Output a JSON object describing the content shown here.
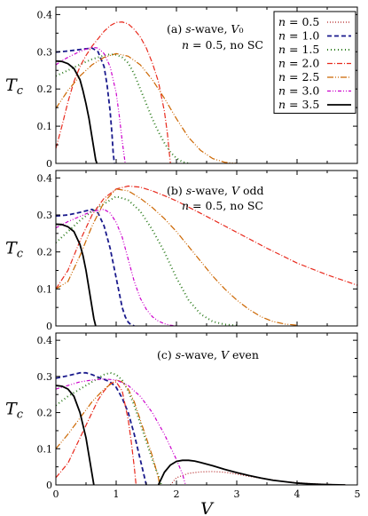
{
  "chart_data": {
    "type": "line",
    "xlabel": "V",
    "xlim": [
      0,
      5
    ],
    "xticks": [
      "0",
      "1",
      "2",
      "3",
      "4",
      "5"
    ],
    "ylim": [
      0,
      0.42
    ],
    "yticks": [
      "0",
      "0.1",
      "0.2",
      "0.3",
      "0.4"
    ],
    "legend": {
      "placement": "top-right",
      "entries": [
        "n = 0.5",
        "n = 1.0",
        "n = 1.5",
        "n = 2.0",
        "n = 2.5",
        "n = 3.0",
        "n = 3.5"
      ]
    },
    "series_styles": [
      {
        "color": "#b22222",
        "dash": "1,2",
        "width": 1.2
      },
      {
        "color": "#1a1a8c",
        "dash": "5,3",
        "width": 1.8
      },
      {
        "color": "#2e7d1f",
        "dash": "1,3",
        "width": 2.0
      },
      {
        "color": "#e8291c",
        "dash": "6,2,1,2",
        "width": 1.2
      },
      {
        "color": "#cc6600",
        "dash": "7,2,1,2,1,2",
        "width": 1.2
      },
      {
        "color": "#cc00cc",
        "dash": "4,2,1,2,1,2",
        "width": 1.2
      },
      {
        "color": "#000000",
        "dash": "",
        "width": 1.8
      }
    ],
    "panels": [
      {
        "annotation_lines": [
          "(a) s-wave, V₀",
          "n = 0.5, no SC"
        ],
        "ylabel": "Tc",
        "series": [
          {
            "name": "n = 0.5",
            "x": [],
            "y": []
          },
          {
            "name": "n = 1.0",
            "x": [
              0,
              0.2,
              0.4,
              0.6,
              0.7,
              0.8,
              0.85,
              0.9,
              0.93,
              0.95,
              0.97
            ],
            "y": [
              0.299,
              0.302,
              0.306,
              0.31,
              0.3,
              0.26,
              0.21,
              0.14,
              0.08,
              0.03,
              0
            ]
          },
          {
            "name": "n = 1.5",
            "x": [
              0,
              0.2,
              0.4,
              0.6,
              0.8,
              0.9,
              1.0,
              1.1,
              1.2,
              1.3,
              1.4,
              1.5,
              1.6,
              1.7,
              1.8,
              1.9,
              2.0,
              2.1,
              2.2
            ],
            "y": [
              0.235,
              0.25,
              0.266,
              0.28,
              0.29,
              0.293,
              0.292,
              0.285,
              0.27,
              0.24,
              0.2,
              0.16,
              0.12,
              0.085,
              0.055,
              0.03,
              0.014,
              0.004,
              0
            ]
          },
          {
            "name": "n = 2.0",
            "x": [
              0,
              0.1,
              0.2,
              0.3,
              0.4,
              0.5,
              0.6,
              0.7,
              0.8,
              0.9,
              1.0,
              1.1,
              1.2,
              1.3,
              1.4,
              1.5,
              1.6,
              1.7,
              1.8,
              1.85,
              1.88,
              1.9
            ],
            "y": [
              0.04,
              0.1,
              0.165,
              0.22,
              0.26,
              0.29,
              0.315,
              0.335,
              0.355,
              0.37,
              0.379,
              0.38,
              0.375,
              0.36,
              0.34,
              0.31,
              0.27,
              0.22,
              0.14,
              0.08,
              0.03,
              0
            ]
          },
          {
            "name": "n = 2.5",
            "x": [
              0,
              0.2,
              0.4,
              0.6,
              0.8,
              1.0,
              1.2,
              1.4,
              1.6,
              1.8,
              2.0,
              2.2,
              2.4,
              2.6,
              2.8,
              3.0
            ],
            "y": [
              0.148,
              0.196,
              0.235,
              0.265,
              0.285,
              0.295,
              0.288,
              0.265,
              0.225,
              0.175,
              0.12,
              0.07,
              0.035,
              0.013,
              0.003,
              0
            ]
          },
          {
            "name": "n = 3.0",
            "x": [
              0,
              0.1,
              0.2,
              0.3,
              0.4,
              0.5,
              0.6,
              0.7,
              0.8,
              0.9,
              1.0,
              1.05,
              1.1,
              1.15
            ],
            "y": [
              0.265,
              0.276,
              0.285,
              0.293,
              0.301,
              0.307,
              0.312,
              0.31,
              0.295,
              0.26,
              0.19,
              0.13,
              0.06,
              0
            ]
          },
          {
            "name": "n = 3.5",
            "x": [
              0,
              0.1,
              0.2,
              0.3,
              0.4,
              0.45,
              0.5,
              0.55,
              0.6,
              0.63,
              0.66,
              0.68
            ],
            "y": [
              0.275,
              0.274,
              0.268,
              0.255,
              0.225,
              0.195,
              0.16,
              0.12,
              0.07,
              0.04,
              0.01,
              0
            ]
          }
        ]
      },
      {
        "annotation_lines": [
          "(b) s-wave, V odd",
          "n = 0.5, no SC"
        ],
        "ylabel": "Tc",
        "series": [
          {
            "name": "n = 0.5",
            "x": [],
            "y": []
          },
          {
            "name": "n = 1.0",
            "x": [
              0,
              0.2,
              0.4,
              0.6,
              0.7,
              0.8,
              0.9,
              1.0,
              1.1,
              1.15,
              1.2,
              1.25,
              1.3
            ],
            "y": [
              0.297,
              0.3,
              0.307,
              0.315,
              0.305,
              0.27,
              0.21,
              0.13,
              0.05,
              0.025,
              0.01,
              0.003,
              0
            ]
          },
          {
            "name": "n = 1.5",
            "x": [
              0,
              0.2,
              0.4,
              0.6,
              0.8,
              1.0,
              1.2,
              1.4,
              1.6,
              1.8,
              2.0,
              2.2,
              2.4,
              2.6,
              2.8,
              3.0
            ],
            "y": [
              0.225,
              0.255,
              0.285,
              0.31,
              0.33,
              0.35,
              0.34,
              0.31,
              0.26,
              0.2,
              0.13,
              0.07,
              0.032,
              0.012,
              0.004,
              0.001
            ]
          },
          {
            "name": "n = 2.0",
            "x": [
              0,
              0.2,
              0.4,
              0.6,
              0.8,
              1.0,
              1.2,
              1.4,
              1.6,
              1.8,
              2.0,
              2.5,
              3.0,
              3.5,
              4.0,
              4.5,
              5.0
            ],
            "y": [
              0.1,
              0.15,
              0.23,
              0.3,
              0.345,
              0.37,
              0.378,
              0.375,
              0.365,
              0.352,
              0.338,
              0.296,
              0.253,
              0.21,
              0.17,
              0.138,
              0.11
            ]
          },
          {
            "name": "n = 2.5",
            "x": [
              0,
              0.2,
              0.4,
              0.6,
              0.8,
              1.0,
              1.2,
              1.4,
              1.6,
              1.8,
              2.0,
              2.2,
              2.4,
              2.6,
              2.8,
              3.0,
              3.2,
              3.4,
              3.6,
              3.8,
              4.0
            ],
            "y": [
              0.1,
              0.12,
              0.19,
              0.27,
              0.335,
              0.37,
              0.365,
              0.345,
              0.32,
              0.29,
              0.255,
              0.215,
              0.175,
              0.135,
              0.1,
              0.07,
              0.045,
              0.025,
              0.012,
              0.005,
              0.002
            ]
          },
          {
            "name": "n = 3.0",
            "x": [
              0,
              0.2,
              0.4,
              0.6,
              0.8,
              0.9,
              1.0,
              1.1,
              1.2,
              1.3,
              1.4,
              1.5,
              1.6,
              1.7,
              1.8,
              1.9,
              2.0
            ],
            "y": [
              0.265,
              0.282,
              0.296,
              0.31,
              0.315,
              0.305,
              0.28,
              0.24,
              0.18,
              0.12,
              0.075,
              0.045,
              0.025,
              0.013,
              0.006,
              0.002,
              0
            ]
          },
          {
            "name": "n = 3.5",
            "x": [
              0,
              0.1,
              0.2,
              0.3,
              0.4,
              0.45,
              0.5,
              0.55,
              0.6,
              0.63,
              0.66
            ],
            "y": [
              0.275,
              0.274,
              0.268,
              0.255,
              0.22,
              0.19,
              0.15,
              0.1,
              0.05,
              0.02,
              0
            ]
          }
        ]
      },
      {
        "annotation_lines": [
          "(c) s-wave, V even"
        ],
        "ylabel": "Tc",
        "series": [
          {
            "name": "n = 0.5",
            "x": [
              1.9,
              2.0,
              2.2,
              2.4,
              2.6,
              2.8,
              3.0,
              3.2,
              3.5,
              3.8,
              4.0,
              4.3,
              4.6,
              4.8
            ],
            "y": [
              0,
              0.02,
              0.032,
              0.036,
              0.037,
              0.035,
              0.03,
              0.024,
              0.016,
              0.009,
              0.006,
              0.003,
              0.001,
              0
            ]
          },
          {
            "name": "n = 1.0",
            "x": [
              0,
              0.2,
              0.4,
              0.5,
              0.6,
              0.7,
              0.8,
              0.9,
              1.0,
              1.1,
              1.2,
              1.3,
              1.4,
              1.5
            ],
            "y": [
              0.295,
              0.302,
              0.31,
              0.31,
              0.305,
              0.298,
              0.292,
              0.285,
              0.27,
              0.24,
              0.2,
              0.14,
              0.07,
              0
            ]
          },
          {
            "name": "n = 1.5",
            "x": [
              0,
              0.2,
              0.4,
              0.6,
              0.8,
              0.9,
              1.0,
              1.1,
              1.2,
              1.3,
              1.4,
              1.5,
              1.6,
              1.7,
              1.75
            ],
            "y": [
              0.22,
              0.245,
              0.265,
              0.285,
              0.305,
              0.31,
              0.305,
              0.29,
              0.26,
              0.22,
              0.17,
              0.12,
              0.07,
              0.025,
              0
            ]
          },
          {
            "name": "n = 2.0",
            "x": [
              0,
              0.2,
              0.4,
              0.6,
              0.7,
              0.8,
              0.9,
              1.0,
              1.1,
              1.2,
              1.25,
              1.3,
              1.33
            ],
            "y": [
              0.02,
              0.06,
              0.13,
              0.2,
              0.235,
              0.26,
              0.28,
              0.285,
              0.26,
              0.18,
              0.12,
              0.05,
              0
            ]
          },
          {
            "name": "n = 2.5",
            "x": [
              0,
              0.2,
              0.4,
              0.6,
              0.8,
              1.0,
              1.1,
              1.2,
              1.3,
              1.4,
              1.5,
              1.6,
              1.65,
              1.7,
              1.72
            ],
            "y": [
              0.1,
              0.14,
              0.185,
              0.23,
              0.265,
              0.29,
              0.285,
              0.265,
              0.23,
              0.18,
              0.13,
              0.08,
              0.05,
              0.02,
              0
            ]
          },
          {
            "name": "n = 3.0",
            "x": [
              0,
              0.2,
              0.4,
              0.6,
              0.8,
              1.0,
              1.2,
              1.4,
              1.6,
              1.8,
              2.0,
              2.1,
              2.15
            ],
            "y": [
              0.265,
              0.275,
              0.285,
              0.29,
              0.293,
              0.29,
              0.275,
              0.245,
              0.2,
              0.14,
              0.07,
              0.03,
              0
            ]
          },
          {
            "name": "n = 3.5",
            "x": [
              0,
              0.1,
              0.2,
              0.3,
              0.4,
              0.5,
              0.55,
              0.6,
              0.63
            ],
            "y": [
              0.275,
              0.273,
              0.265,
              0.245,
              0.2,
              0.13,
              0.08,
              0.03,
              0
            ]
          },
          {
            "name": "n = 3.5",
            "x": [
              1.7,
              1.8,
              1.9,
              2.0,
              2.1,
              2.2,
              2.3,
              2.4,
              2.6,
              2.8,
              3.0,
              3.2,
              3.4,
              3.6,
              3.8,
              4.0,
              4.2,
              4.4,
              4.6,
              4.8
            ],
            "y": [
              0,
              0.035,
              0.055,
              0.065,
              0.068,
              0.068,
              0.066,
              0.062,
              0.053,
              0.043,
              0.034,
              0.026,
              0.019,
              0.013,
              0.009,
              0.005,
              0.003,
              0.0015,
              0.0005,
              0
            ]
          }
        ]
      }
    ]
  }
}
